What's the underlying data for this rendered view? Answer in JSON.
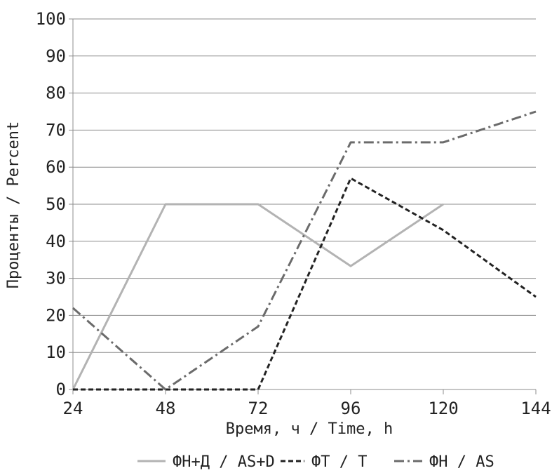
{
  "chart_data": {
    "type": "line",
    "xlabel": "Время, ч / Time, h",
    "ylabel": "Проценты / Percent",
    "x": [
      24,
      48,
      72,
      96,
      120,
      144
    ],
    "xlim": [
      24,
      144
    ],
    "ylim": [
      0,
      100
    ],
    "yticks": [
      0,
      10,
      20,
      30,
      40,
      50,
      60,
      70,
      80,
      90,
      100
    ],
    "grid": "horizontal",
    "legend_position": "bottom",
    "series": [
      {
        "name": "ФН+Д / AS+D",
        "style": "solid",
        "color": "#b3b3b3",
        "points": [
          [
            24,
            0
          ],
          [
            48,
            50
          ],
          [
            72,
            50
          ],
          [
            96,
            33.3
          ],
          [
            120,
            50
          ]
        ]
      },
      {
        "name": "ФТ / Т",
        "style": "dashed",
        "color": "#222222",
        "points": [
          [
            24,
            0
          ],
          [
            48,
            0
          ],
          [
            72,
            0
          ],
          [
            96,
            57
          ],
          [
            120,
            43
          ],
          [
            144,
            25
          ]
        ]
      },
      {
        "name": "ФН / AS",
        "style": "dashdot",
        "color": "#6b6b6b",
        "points": [
          [
            24,
            22
          ],
          [
            48,
            0
          ],
          [
            72,
            17
          ],
          [
            96,
            66.7
          ],
          [
            120,
            66.7
          ],
          [
            144,
            75
          ]
        ]
      }
    ]
  }
}
